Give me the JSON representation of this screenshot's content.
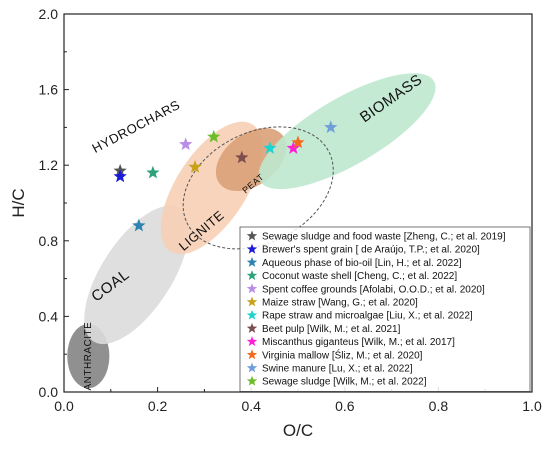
{
  "chart_data": {
    "type": "scatter",
    "xlabel": "O/C",
    "ylabel": "H/C",
    "xlim": [
      0.0,
      1.0
    ],
    "ylim": [
      0.0,
      2.0
    ],
    "x_ticks": [
      "0.0",
      "0.2",
      "0.4",
      "0.6",
      "0.8",
      "1.0"
    ],
    "y_ticks": [
      "0.0",
      "0.4",
      "0.8",
      "1.2",
      "1.6",
      "2.0"
    ],
    "legend_position": "bottom-right",
    "grid": false,
    "regions": [
      {
        "label": "ANTHRACITE",
        "color": "#8a8a8a"
      },
      {
        "label": "COAL",
        "color": "#dcdcdc"
      },
      {
        "label": "LIGNITE",
        "color": "#f6cfb4"
      },
      {
        "label": "PEAT",
        "color": "#d9a178"
      },
      {
        "label": "BIOMASS",
        "color": "#bfe8cf"
      },
      {
        "label": "HYDROCHARS",
        "color": "#555555"
      }
    ],
    "series": [
      {
        "name": "Sewage sludge and food waste [Zheng, C.; et al. 2019]",
        "color": "#555555",
        "x": 0.12,
        "y": 1.17
      },
      {
        "name": "Brewer's spent grain [ de Araújo, T.P.; et al. 2020]",
        "color": "#1a1adb",
        "x": 0.12,
        "y": 1.14
      },
      {
        "name": "Aqueous phase of bio-oil [Lin, H.; et al. 2022]",
        "color": "#2e83b0",
        "x": 0.16,
        "y": 0.88
      },
      {
        "name": "Coconut waste shell [Cheng, C.; et al. 2022]",
        "color": "#2ea37a",
        "x": 0.19,
        "y": 1.16
      },
      {
        "name": "Spent coffee grounds [Afolabi, O.O.D.; et al. 2020]",
        "color": "#b98de8",
        "x": 0.26,
        "y": 1.31
      },
      {
        "name": "Maize straw [Wang, G.; et al. 2020]",
        "color": "#c9a21a",
        "x": 0.28,
        "y": 1.19
      },
      {
        "name": "Rape straw and microalgae [Liu, X.; et al. 2022]",
        "color": "#1fd2d2",
        "x": 0.44,
        "y": 1.29
      },
      {
        "name": "Beet pulp [Wilk, M.; et al. 2021]",
        "color": "#7e4e4e",
        "x": 0.38,
        "y": 1.24
      },
      {
        "name": "Miscanthus giganteus [Wilk, M.; et al. 2017]",
        "color": "#ff1fd6",
        "x": 0.49,
        "y": 1.29
      },
      {
        "name": "Virginia mallow [Śliz, M.; et al. 2020]",
        "color": "#f26a1d",
        "x": 0.5,
        "y": 1.32
      },
      {
        "name": "Swine manure [Lu, X.; et al. 2022]",
        "color": "#6f9fd9",
        "x": 0.57,
        "y": 1.4
      },
      {
        "name": "Sewage sludge [Wilk, M.; et al. 2022]",
        "color": "#6cbd2a",
        "x": 0.32,
        "y": 1.35
      }
    ]
  }
}
